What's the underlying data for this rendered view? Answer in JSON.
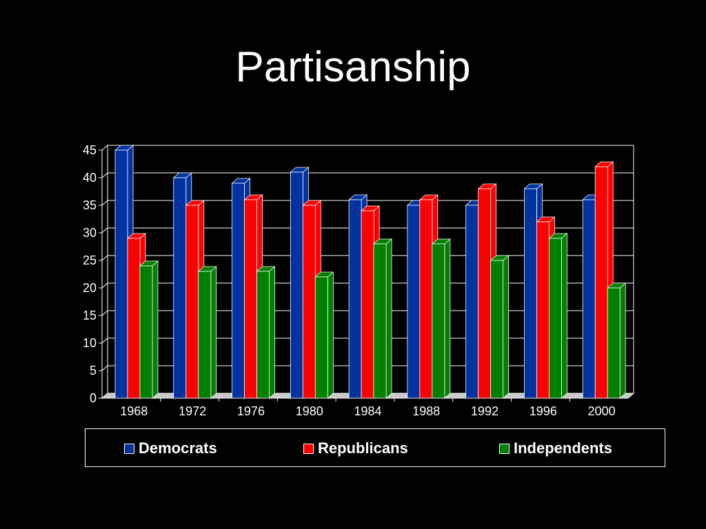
{
  "title": "Partisanship",
  "chart_data": {
    "type": "bar",
    "categories": [
      "1968",
      "1972",
      "1976",
      "1980",
      "1984",
      "1988",
      "1992",
      "1996",
      "2000"
    ],
    "series": [
      {
        "name": "Democrats",
        "color": "#0033a0",
        "values": [
          45,
          40,
          39,
          41,
          36,
          35,
          35,
          38,
          36
        ]
      },
      {
        "name": "Republicans",
        "color": "#ff0000",
        "values": [
          29,
          35,
          36,
          35,
          34,
          36,
          38,
          32,
          42
        ]
      },
      {
        "name": "Independents",
        "color": "#008000",
        "values": [
          24,
          23,
          23,
          22,
          28,
          28,
          25,
          29,
          20
        ]
      }
    ],
    "yticks": [
      "0",
      "5",
      "10",
      "15",
      "20",
      "25",
      "30",
      "35",
      "40",
      "45"
    ],
    "ylim": [
      0,
      45
    ],
    "grid": true,
    "three_d": true,
    "legend_position": "bottom"
  }
}
